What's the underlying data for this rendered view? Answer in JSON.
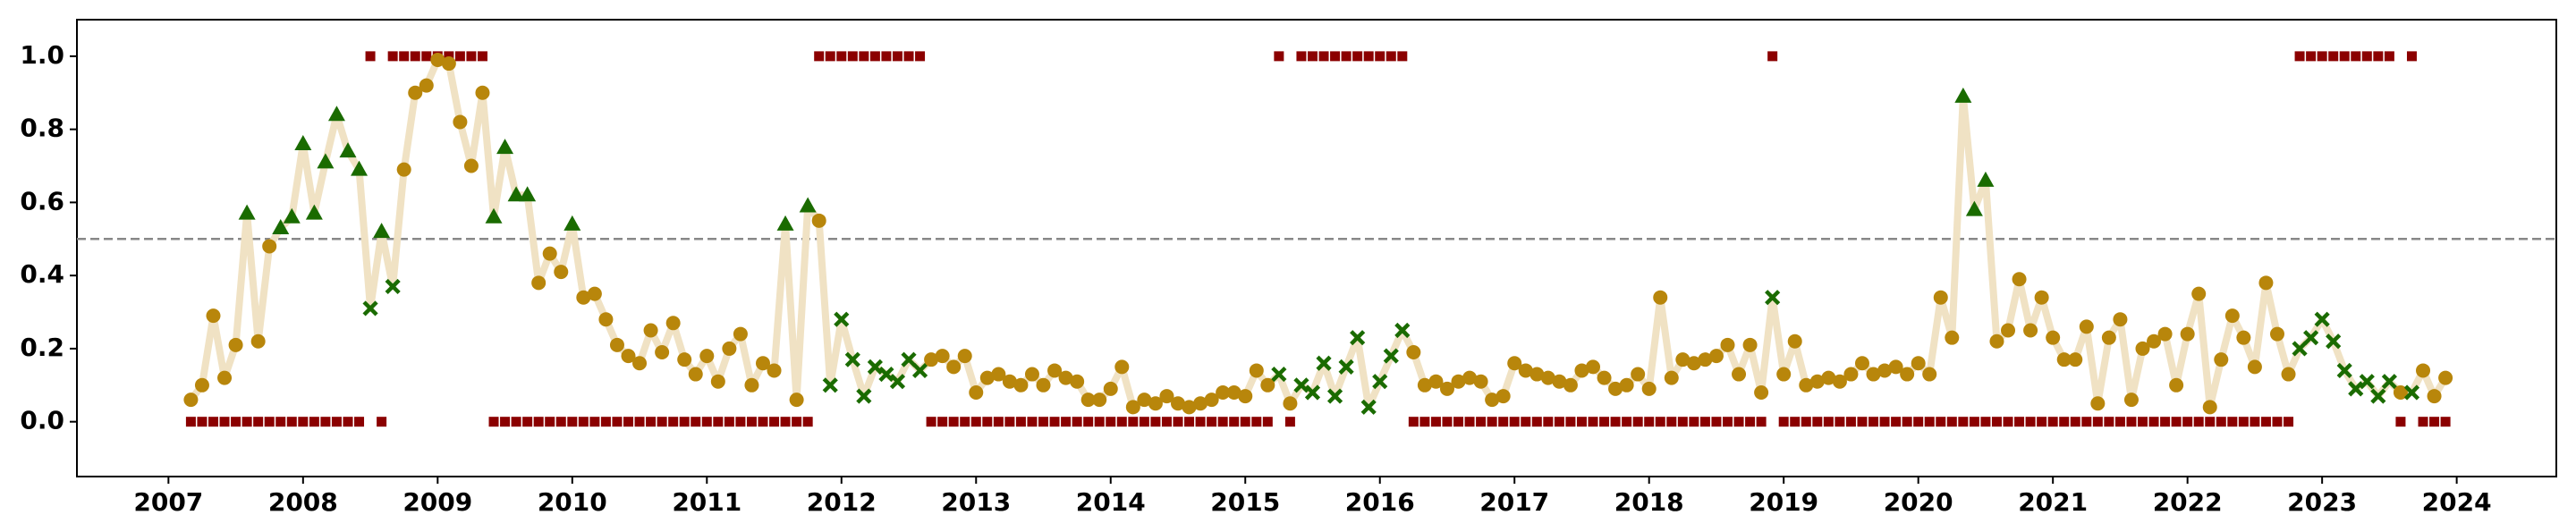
{
  "chart_data": {
    "type": "line",
    "x": [
      "2007-03",
      "2007-04",
      "2007-05",
      "2007-06",
      "2007-07",
      "2007-08",
      "2007-09",
      "2007-10",
      "2007-11",
      "2007-12",
      "2008-01",
      "2008-02",
      "2008-03",
      "2008-04",
      "2008-05",
      "2008-06",
      "2008-07",
      "2008-08",
      "2008-09",
      "2008-10",
      "2008-11",
      "2008-12",
      "2009-01",
      "2009-02",
      "2009-03",
      "2009-04",
      "2009-05",
      "2009-06",
      "2009-07",
      "2009-08",
      "2009-09",
      "2009-10",
      "2009-11",
      "2009-12",
      "2010-01",
      "2010-02",
      "2010-03",
      "2010-04",
      "2010-05",
      "2010-06",
      "2010-07",
      "2010-08",
      "2010-09",
      "2010-10",
      "2010-11",
      "2010-12",
      "2011-01",
      "2011-02",
      "2011-03",
      "2011-04",
      "2011-05",
      "2011-06",
      "2011-07",
      "2011-08",
      "2011-09",
      "2011-10",
      "2011-11",
      "2011-12",
      "2012-01",
      "2012-02",
      "2012-03",
      "2012-04",
      "2012-05",
      "2012-06",
      "2012-07",
      "2012-08",
      "2012-09",
      "2012-10",
      "2012-11",
      "2012-12",
      "2013-01",
      "2013-02",
      "2013-03",
      "2013-04",
      "2013-05",
      "2013-06",
      "2013-07",
      "2013-08",
      "2013-09",
      "2013-10",
      "2013-11",
      "2013-12",
      "2014-01",
      "2014-02",
      "2014-03",
      "2014-04",
      "2014-05",
      "2014-06",
      "2014-07",
      "2014-08",
      "2014-09",
      "2014-10",
      "2014-11",
      "2014-12",
      "2015-01",
      "2015-02",
      "2015-03",
      "2015-04",
      "2015-05",
      "2015-06",
      "2015-07",
      "2015-08",
      "2015-09",
      "2015-10",
      "2015-11",
      "2015-12",
      "2016-01",
      "2016-02",
      "2016-03",
      "2016-04",
      "2016-05",
      "2016-06",
      "2016-07",
      "2016-08",
      "2016-09",
      "2016-10",
      "2016-11",
      "2016-12",
      "2017-01",
      "2017-02",
      "2017-03",
      "2017-04",
      "2017-05",
      "2017-06",
      "2017-07",
      "2017-08",
      "2017-09",
      "2017-10",
      "2017-11",
      "2017-12",
      "2018-01",
      "2018-02",
      "2018-03",
      "2018-04",
      "2018-05",
      "2018-06",
      "2018-07",
      "2018-08",
      "2018-09",
      "2018-10",
      "2018-11",
      "2018-12",
      "2019-01",
      "2019-02",
      "2019-03",
      "2019-04",
      "2019-05",
      "2019-06",
      "2019-07",
      "2019-08",
      "2019-09",
      "2019-10",
      "2019-11",
      "2019-12",
      "2020-01",
      "2020-02",
      "2020-03",
      "2020-04",
      "2020-05",
      "2020-06",
      "2020-07",
      "2020-08",
      "2020-09",
      "2020-10",
      "2020-11",
      "2020-12",
      "2021-01",
      "2021-02",
      "2021-03",
      "2021-04",
      "2021-05",
      "2021-06",
      "2021-07",
      "2021-08",
      "2021-09",
      "2021-10",
      "2021-11",
      "2021-12",
      "2022-01",
      "2022-02",
      "2022-03",
      "2022-04",
      "2022-05",
      "2022-06",
      "2022-07",
      "2022-08",
      "2022-09",
      "2022-10",
      "2022-11",
      "2022-12",
      "2023-01",
      "2023-02",
      "2023-03",
      "2023-04",
      "2023-05",
      "2023-06",
      "2023-07",
      "2023-08",
      "2023-09",
      "2023-10",
      "2023-11",
      "2023-12"
    ],
    "values": [
      0.06,
      0.1,
      0.29,
      0.12,
      0.21,
      0.57,
      0.22,
      0.48,
      0.53,
      0.56,
      0.76,
      0.57,
      0.71,
      0.84,
      0.74,
      0.69,
      0.31,
      0.52,
      0.37,
      0.69,
      0.9,
      0.92,
      0.99,
      0.98,
      0.82,
      0.7,
      0.9,
      0.56,
      0.75,
      0.62,
      0.62,
      0.38,
      0.46,
      0.41,
      0.54,
      0.34,
      0.35,
      0.28,
      0.21,
      0.18,
      0.16,
      0.25,
      0.19,
      0.27,
      0.17,
      0.13,
      0.18,
      0.11,
      0.2,
      0.24,
      0.1,
      0.16,
      0.14,
      0.54,
      0.06,
      0.59,
      0.55,
      0.1,
      0.28,
      0.17,
      0.07,
      0.15,
      0.13,
      0.11,
      0.17,
      0.14,
      0.17,
      0.18,
      0.15,
      0.18,
      0.08,
      0.12,
      0.13,
      0.11,
      0.1,
      0.13,
      0.1,
      0.14,
      0.12,
      0.11,
      0.06,
      0.06,
      0.09,
      0.15,
      0.04,
      0.06,
      0.05,
      0.07,
      0.05,
      0.04,
      0.05,
      0.06,
      0.08,
      0.08,
      0.07,
      0.14,
      0.1,
      0.13,
      0.05,
      0.1,
      0.08,
      0.16,
      0.07,
      0.15,
      0.23,
      0.04,
      0.11,
      0.18,
      0.25,
      0.19,
      0.1,
      0.11,
      0.09,
      0.11,
      0.12,
      0.11,
      0.06,
      0.07,
      0.16,
      0.14,
      0.13,
      0.12,
      0.11,
      0.1,
      0.14,
      0.15,
      0.12,
      0.09,
      0.1,
      0.13,
      0.09,
      0.34,
      0.12,
      0.17,
      0.16,
      0.17,
      0.18,
      0.21,
      0.13,
      0.21,
      0.08,
      0.34,
      0.13,
      0.22,
      0.1,
      0.11,
      0.12,
      0.11,
      0.13,
      0.16,
      0.13,
      0.14,
      0.15,
      0.13,
      0.16,
      0.13,
      0.34,
      0.23,
      0.89,
      0.58,
      0.66,
      0.22,
      0.25,
      0.39,
      0.25,
      0.34,
      0.23,
      0.17,
      0.17,
      0.26,
      0.05,
      0.23,
      0.28,
      0.06,
      0.2,
      0.22,
      0.24,
      0.1,
      0.24,
      0.35,
      0.04,
      0.17,
      0.29,
      0.23,
      0.15,
      0.38,
      0.24,
      0.13,
      0.2,
      0.23,
      0.28,
      0.22,
      0.14,
      0.09,
      0.11,
      0.07,
      0.11,
      0.08,
      0.08,
      0.14,
      0.07,
      0.12
    ],
    "labels": [
      0,
      0,
      0,
      0,
      0,
      0,
      0,
      0,
      0,
      0,
      0,
      0,
      0,
      0,
      0,
      0,
      1,
      0,
      1,
      1,
      1,
      1,
      1,
      1,
      1,
      1,
      1,
      0,
      0,
      0,
      0,
      0,
      0,
      0,
      0,
      0,
      0,
      0,
      0,
      0,
      0,
      0,
      0,
      0,
      0,
      0,
      0,
      0,
      0,
      0,
      0,
      0,
      0,
      0,
      0,
      0,
      1,
      1,
      1,
      1,
      1,
      1,
      1,
      1,
      1,
      1,
      0,
      0,
      0,
      0,
      0,
      0,
      0,
      0,
      0,
      0,
      0,
      0,
      0,
      0,
      0,
      0,
      0,
      0,
      0,
      0,
      0,
      0,
      0,
      0,
      0,
      0,
      0,
      0,
      0,
      0,
      0,
      1,
      0,
      1,
      1,
      1,
      1,
      1,
      1,
      1,
      1,
      1,
      1,
      0,
      0,
      0,
      0,
      0,
      0,
      0,
      0,
      0,
      0,
      0,
      0,
      0,
      0,
      0,
      0,
      0,
      0,
      0,
      0,
      0,
      0,
      0,
      0,
      0,
      0,
      0,
      0,
      0,
      0,
      0,
      0,
      1,
      0,
      0,
      0,
      0,
      0,
      0,
      0,
      0,
      0,
      0,
      0,
      0,
      0,
      0,
      0,
      0,
      0,
      0,
      0,
      0,
      0,
      0,
      0,
      0,
      0,
      0,
      0,
      0,
      0,
      0,
      0,
      0,
      0,
      0,
      0,
      0,
      0,
      0,
      0,
      0,
      0,
      0,
      0,
      0,
      0,
      0,
      1,
      1,
      1,
      1,
      1,
      1,
      1,
      1,
      1,
      0,
      1,
      0,
      0,
      0
    ],
    "threshold": 0.5,
    "line_color": "#f0e2c4",
    "correct_color": "#b8860b",
    "false_positive_color": "#1a6b00",
    "false_negative_color": "#1a6b00",
    "label_color": "#8b0000",
    "threshold_color": "#888888",
    "xlim": [
      2006.32,
      2024.74
    ],
    "xticks": [
      2007,
      2008,
      2009,
      2010,
      2011,
      2012,
      2013,
      2014,
      2015,
      2016,
      2017,
      2018,
      2019,
      2020,
      2021,
      2022,
      2023,
      2024
    ],
    "ylim": [
      -0.15,
      1.1
    ],
    "yticks": [
      {
        "value": 0,
        "label": "0.0"
      },
      {
        "value": 0.2,
        "label": "0.2"
      },
      {
        "value": 0.4,
        "label": "0.4"
      },
      {
        "value": 0.6,
        "label": "0.6"
      },
      {
        "value": 0.8,
        "label": "0.8"
      },
      {
        "value": 1,
        "label": "1.0"
      }
    ]
  }
}
